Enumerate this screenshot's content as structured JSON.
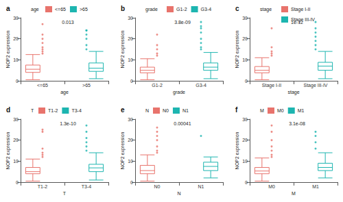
{
  "chart_data": [
    {
      "panel": "a",
      "type": "boxplot",
      "legend_title": "age",
      "legend": "top",
      "categories": [
        "<=65",
        ">65"
      ],
      "x_label": "age",
      "y_label": "NOP2 expression",
      "annotation": "0.013",
      "ylim": [
        0,
        30
      ],
      "yticks": [
        0,
        10,
        20,
        30
      ],
      "grid": false,
      "colors": [
        "#E8736C",
        "#1DB5B0"
      ],
      "boxes": [
        [
          0.5,
          4,
          5.5,
          7.5,
          12.5
        ],
        [
          1,
          4.5,
          6,
          8.5,
          14
        ]
      ],
      "outliers": [
        [
          13,
          14,
          15,
          16,
          18,
          20,
          22,
          27
        ],
        [
          15,
          17,
          20,
          22,
          24,
          24
        ]
      ]
    },
    {
      "panel": "b",
      "type": "boxplot",
      "legend_title": "grade",
      "legend": "top",
      "categories": [
        "G1-2",
        "G3-4"
      ],
      "x_label": "grade",
      "y_label": "NOP2 expression",
      "annotation": "3.8e-09",
      "ylim": [
        0,
        30
      ],
      "yticks": [
        0,
        10,
        20,
        30
      ],
      "grid": false,
      "colors": [
        "#E8736C",
        "#1DB5B0"
      ],
      "boxes": [
        [
          0.5,
          3.8,
          5,
          6.5,
          10.5
        ],
        [
          1,
          5,
          6.5,
          8.5,
          13.5
        ]
      ],
      "outliers": [
        [
          12,
          13,
          15,
          17,
          22
        ],
        [
          15,
          16,
          18,
          20,
          23,
          25,
          26,
          28
        ]
      ]
    },
    {
      "panel": "c",
      "type": "boxplot",
      "legend_title": "stage",
      "legend": "top",
      "categories": [
        "Stage I-II",
        "Stage III-IV"
      ],
      "x_label": "stage",
      "y_label": "NOP2 expression",
      "annotation": "1e-12",
      "ylim": [
        0,
        30
      ],
      "yticks": [
        0,
        10,
        20,
        30
      ],
      "grid": false,
      "colors": [
        "#E8736C",
        "#1DB5B0"
      ],
      "boxes": [
        [
          0.5,
          3.8,
          5,
          6.8,
          11
        ],
        [
          1,
          5,
          7,
          8.8,
          14
        ]
      ],
      "outliers": [
        [
          12,
          13,
          14,
          16,
          25
        ],
        [
          15,
          17,
          19,
          21,
          23,
          25,
          28
        ]
      ]
    },
    {
      "panel": "d",
      "type": "boxplot",
      "legend_title": "T",
      "legend": "top",
      "categories": [
        "T1-2",
        "T3-4"
      ],
      "x_label": "T",
      "y_label": "NOP2 expression",
      "annotation": "1.3e-10",
      "ylim": [
        0,
        30
      ],
      "yticks": [
        0,
        10,
        20,
        30
      ],
      "grid": false,
      "colors": [
        "#E8736C",
        "#1DB5B0"
      ],
      "boxes": [
        [
          0.5,
          4,
          5,
          7,
          11
        ],
        [
          1,
          5,
          6.8,
          8.5,
          14
        ]
      ],
      "outliers": [
        [
          12,
          13,
          14,
          16,
          24,
          25
        ],
        [
          15,
          17,
          19,
          21,
          24,
          27
        ]
      ]
    },
    {
      "panel": "e",
      "type": "boxplot",
      "legend_title": "N",
      "legend": "top",
      "categories": [
        "N0",
        "N1"
      ],
      "x_label": "N",
      "y_label": "NOP2 expression",
      "annotation": "0.00041",
      "ylim": [
        0,
        30
      ],
      "yticks": [
        0,
        10,
        20,
        30
      ],
      "grid": false,
      "colors": [
        "#E8736C",
        "#1DB5B0"
      ],
      "boxes": [
        [
          0.5,
          4,
          5.5,
          8,
          13
        ],
        [
          2,
          5.5,
          7.5,
          9.5,
          12
        ]
      ],
      "outliers": [
        [
          14,
          15,
          17,
          20,
          22,
          24,
          26
        ],
        [
          22
        ]
      ]
    },
    {
      "panel": "f",
      "type": "boxplot",
      "legend_title": "M",
      "legend": "top",
      "categories": [
        "M0",
        "M1"
      ],
      "x_label": "M",
      "y_label": "NOP2 expression",
      "annotation": "3.1e-08",
      "ylim": [
        0,
        30
      ],
      "yticks": [
        0,
        10,
        20,
        30
      ],
      "grid": false,
      "colors": [
        "#E8736C",
        "#1DB5B0"
      ],
      "boxes": [
        [
          0.5,
          4,
          5.3,
          7,
          11.5
        ],
        [
          2,
          5.5,
          7,
          9,
          14
        ]
      ],
      "outliers": [
        [
          12,
          13,
          15,
          17,
          20,
          24,
          27
        ],
        [
          16,
          19,
          22,
          24
        ]
      ]
    }
  ]
}
